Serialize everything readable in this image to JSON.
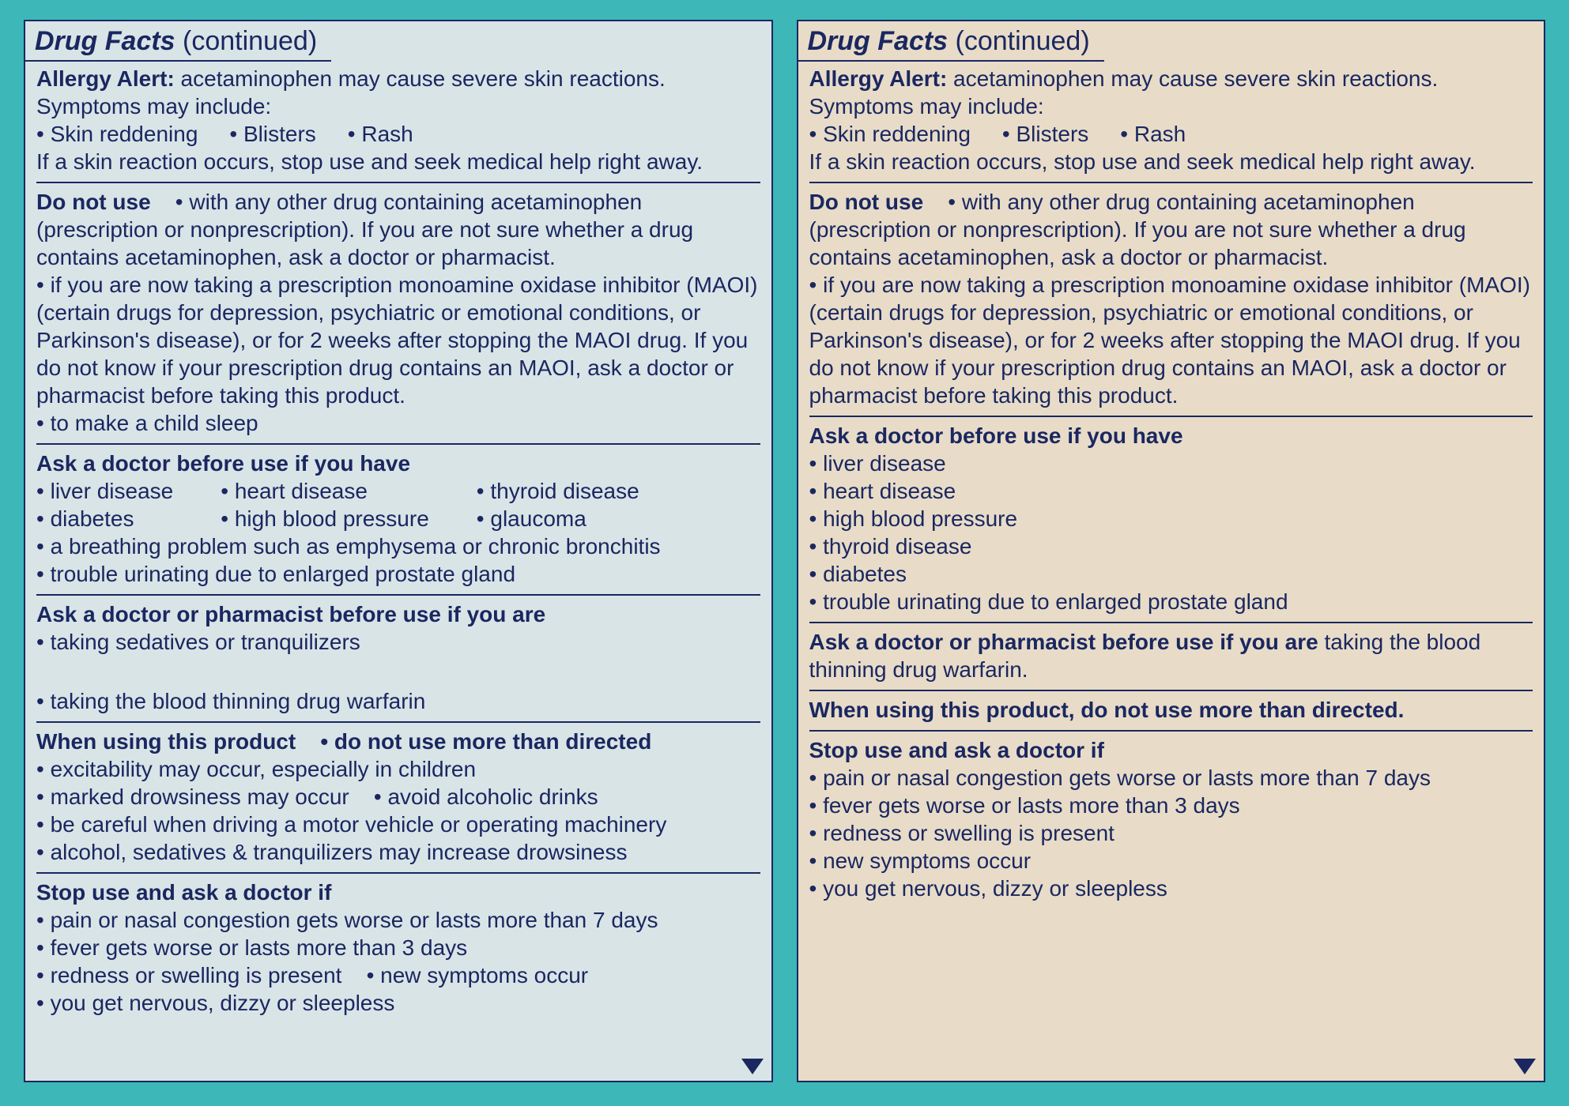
{
  "colors": {
    "page_bg": "#3db7b8",
    "panel_left_bg": "#d9e4e7",
    "panel_right_bg": "#e8dcc8",
    "text": "#1a2760",
    "rule": "#1a2760",
    "border": "#1a2760"
  },
  "typography": {
    "heading_fontsize_pt": 26,
    "body_fontsize_pt": 21,
    "heading_style": "bold italic"
  },
  "left": {
    "tab_title": "Drug Facts",
    "tab_cont": " (continued)",
    "allergy": {
      "heading": "Allergy Alert:",
      "lead": " acetaminophen may cause severe skin reactions. Symptoms may include:",
      "bullets": [
        "Skin reddening",
        "Blisters",
        "Rash"
      ],
      "tail": "If a skin reaction occurs, stop use and seek medical help right away."
    },
    "donotuse": {
      "heading": "Do not use",
      "items": [
        "with any other drug containing acetaminophen (prescription or nonprescription). If you are not sure whether a drug contains acetaminophen, ask a doctor or pharmacist.",
        "if you are now taking a prescription monoamine oxidase inhibitor (MAOI) (certain drugs for depression, psychiatric or emotional conditions, or Parkinson's disease), or for 2 weeks after stopping the MAOI drug. If you do not know if your prescription drug contains an MAOI, ask a doctor or pharmacist before taking this product.",
        "to make a child sleep"
      ]
    },
    "askdoctor": {
      "heading": "Ask a doctor before use if you have",
      "cols": [
        [
          "liver disease",
          "diabetes"
        ],
        [
          "heart disease",
          "high blood pressure"
        ],
        [
          "thyroid disease",
          "glaucoma"
        ]
      ],
      "extra": [
        "a breathing problem such as emphysema or chronic bronchitis",
        "trouble urinating due to enlarged prostate gland"
      ]
    },
    "askpharm": {
      "heading": "Ask a doctor or pharmacist before use if you are",
      "items": [
        "taking sedatives or tranquilizers",
        "taking the blood thinning drug warfarin"
      ]
    },
    "whenusing": {
      "heading": "When using this product",
      "headbullet": "do not use more than directed",
      "items": [
        "excitability may occur, especially in children",
        "marked drowsiness may occur",
        "avoid alcoholic drinks",
        "be careful when driving a motor vehicle or operating machinery",
        "alcohol, sedatives & tranquilizers may increase drowsiness"
      ]
    },
    "stopuse": {
      "heading": "Stop use and ask a doctor if",
      "items": [
        "pain or nasal congestion gets worse or lasts more than 7 days",
        "fever gets worse or lasts more than 3 days",
        "redness or swelling is present",
        "new symptoms occur",
        "you get nervous, dizzy or sleepless"
      ]
    }
  },
  "right": {
    "tab_title": "Drug Facts",
    "tab_cont": " (continued)",
    "allergy": {
      "heading": "Allergy Alert:",
      "lead": " acetaminophen may cause severe skin reactions. Symptoms may include:",
      "bullets": [
        "Skin reddening",
        "Blisters",
        "Rash"
      ],
      "tail": "If a skin reaction occurs, stop use and seek medical help right away."
    },
    "donotuse": {
      "heading": "Do not use",
      "items": [
        "with any other drug containing acetaminophen (prescription or nonprescription). If you are not sure whether a drug contains acetaminophen, ask a doctor or pharmacist.",
        "if you are now taking a prescription monoamine oxidase inhibitor (MAOI) (certain drugs for depression, psychiatric or emotional conditions, or Parkinson's disease), or for 2 weeks after stopping the MAOI drug. If you do not know if your prescription drug contains an MAOI, ask a doctor or pharmacist before taking this product."
      ]
    },
    "askdoctor": {
      "heading": "Ask a doctor before use if you have",
      "items": [
        "liver disease",
        "heart disease",
        "high blood pressure",
        "thyroid disease",
        "diabetes",
        "trouble urinating due to enlarged prostate gland"
      ]
    },
    "askpharm": {
      "heading": "Ask a doctor or pharmacist before use if you are",
      "tail": " taking the blood thinning drug warfarin."
    },
    "whenusing": {
      "text": "When using this product, do not use more than directed."
    },
    "stopuse": {
      "heading": "Stop use and ask a doctor if",
      "items": [
        "pain or nasal congestion gets worse or lasts more than 7 days",
        "fever gets worse or lasts more than 3 days",
        "redness or swelling is present",
        "new symptoms occur",
        "you get nervous, dizzy or sleepless"
      ]
    }
  }
}
